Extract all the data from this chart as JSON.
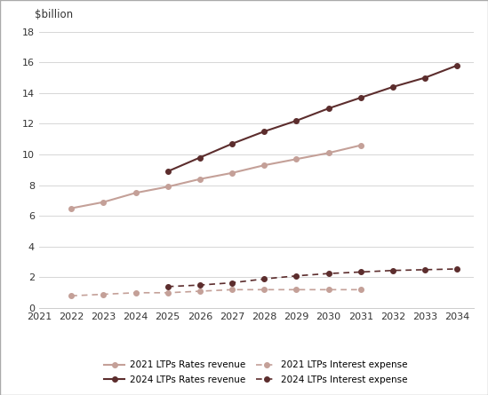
{
  "years_2021_rr": [
    2022,
    2023,
    2024,
    2025,
    2026,
    2027,
    2028,
    2029,
    2030,
    2031
  ],
  "years_2024_rr": [
    2025,
    2026,
    2027,
    2028,
    2029,
    2030,
    2031,
    2032,
    2033,
    2034
  ],
  "years_2021_ie": [
    2022,
    2023,
    2024,
    2025,
    2026,
    2027,
    2028,
    2029,
    2030,
    2031
  ],
  "years_2024_ie": [
    2025,
    2026,
    2027,
    2028,
    2029,
    2030,
    2031,
    2032,
    2033,
    2034
  ],
  "rates_revenue_2021": [
    6.5,
    6.9,
    7.5,
    7.9,
    8.4,
    8.8,
    9.3,
    9.7,
    10.1,
    10.6
  ],
  "rates_revenue_2024": [
    8.9,
    9.8,
    10.7,
    11.5,
    12.2,
    13.0,
    13.7,
    14.4,
    15.0,
    15.8
  ],
  "interest_expense_2021": [
    0.8,
    0.9,
    1.0,
    1.0,
    1.1,
    1.2,
    1.2,
    1.2,
    1.2,
    1.2
  ],
  "interest_expense_2024": [
    1.4,
    1.5,
    1.65,
    1.9,
    2.1,
    2.25,
    2.35,
    2.45,
    2.5,
    2.55
  ],
  "color_2021": "#c4a098",
  "color_2024": "#5c2d2d",
  "ylabel": "$billion",
  "ylim": [
    0,
    18
  ],
  "yticks": [
    0,
    2,
    4,
    6,
    8,
    10,
    12,
    14,
    16,
    18
  ],
  "xlim": [
    2021,
    2034.5
  ],
  "xticks": [
    2021,
    2022,
    2023,
    2024,
    2025,
    2026,
    2027,
    2028,
    2029,
    2030,
    2031,
    2032,
    2033,
    2034
  ],
  "legend_labels": [
    "2021 LTPs Rates revenue",
    "2024 LTPs Rates revenue",
    "2021 LTPs Interest expense",
    "2024 LTPs Interest expense"
  ]
}
